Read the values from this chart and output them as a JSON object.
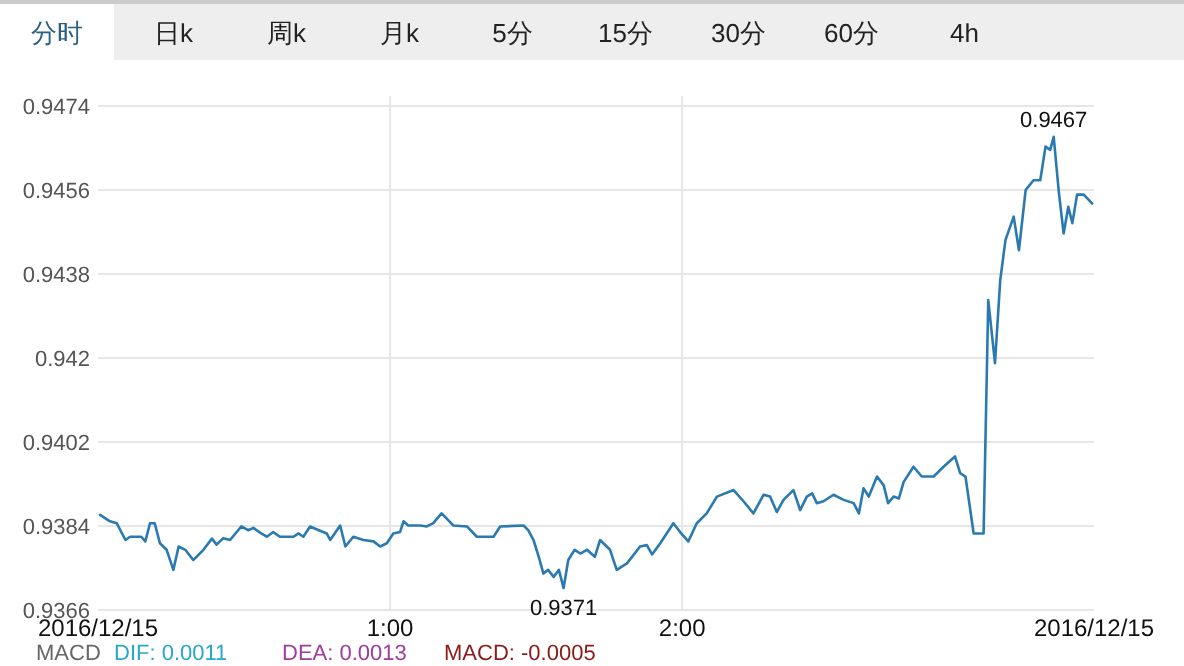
{
  "chart_data": [
    {
      "type": "other",
      "annotations": [
        "分时",
        "日k",
        "周k",
        "月k",
        "5分",
        "15分",
        "30分",
        "60分",
        "4h"
      ]
    },
    {
      "type": "line",
      "x": [
        0.007,
        0.041,
        0.064,
        0.094,
        0.11,
        0.148,
        0.162,
        0.178,
        0.194,
        0.212,
        0.235,
        0.258,
        0.276,
        0.299,
        0.326,
        0.361,
        0.39,
        0.406,
        0.429,
        0.452,
        0.491,
        0.514,
        0.532,
        0.559,
        0.578,
        0.6,
        0.623,
        0.669,
        0.687,
        0.703,
        0.726,
        0.756,
        0.783,
        0.795,
        0.829,
        0.847,
        0.874,
        0.909,
        0.943,
        0.966,
        0.989,
        1.011,
        1.034,
        1.046,
        1.062,
        1.103,
        1.126,
        1.148,
        1.176,
        1.194,
        1.217,
        1.263,
        1.297,
        1.354,
        1.377,
        1.457,
        1.473,
        1.491,
        1.509,
        1.525,
        1.541,
        1.56,
        1.578,
        1.594,
        1.61,
        1.632,
        1.651,
        1.674,
        1.701,
        1.719,
        1.753,
        1.776,
        1.811,
        1.856,
        1.879,
        1.897,
        1.925,
        1.97,
        1.993,
        2.021,
        2.05,
        2.084,
        2.119,
        2.176,
        2.21,
        2.244,
        2.279,
        2.301,
        2.324,
        2.347,
        2.381,
        2.404,
        2.427,
        2.445,
        2.461,
        2.484,
        2.518,
        2.553,
        2.587,
        2.605,
        2.621,
        2.639,
        2.667,
        2.69,
        2.705,
        2.724,
        2.742,
        2.758,
        2.792,
        2.82,
        2.861,
        2.895,
        2.934,
        2.952,
        2.97,
        2.998,
        3.032,
        3.048,
        3.071,
        3.089,
        3.107,
        3.135,
        3.153,
        3.176,
        3.203,
        3.226,
        3.244,
        3.26,
        3.272,
        3.29,
        3.306,
        3.322,
        3.336,
        3.352,
        3.375,
        3.404
      ],
      "series": [
        {
          "color": "#2a7ab0",
          "values": [
            0.93864,
            0.9385,
            0.93846,
            0.9381,
            0.93817,
            0.93817,
            0.93807,
            0.93846,
            0.93846,
            0.93803,
            0.93789,
            0.93746,
            0.93796,
            0.93789,
            0.93767,
            0.93789,
            0.93813,
            0.938,
            0.93814,
            0.9381,
            0.93839,
            0.93831,
            0.93836,
            0.93824,
            0.93817,
            0.93827,
            0.93817,
            0.93817,
            0.93824,
            0.93817,
            0.93839,
            0.93831,
            0.93824,
            0.9381,
            0.93841,
            0.93796,
            0.93817,
            0.9381,
            0.93807,
            0.93796,
            0.93803,
            0.93824,
            0.93827,
            0.9385,
            0.93841,
            0.93841,
            0.93839,
            0.93846,
            0.93867,
            0.93856,
            0.93841,
            0.93839,
            0.93817,
            0.93817,
            0.93839,
            0.93841,
            0.93831,
            0.9381,
            0.93774,
            0.93738,
            0.93746,
            0.93731,
            0.93746,
            0.93707,
            0.93767,
            0.93789,
            0.93781,
            0.93789,
            0.93774,
            0.9381,
            0.93789,
            0.93746,
            0.9376,
            0.93796,
            0.93799,
            0.93779,
            0.93803,
            0.93846,
            0.93827,
            0.93807,
            0.93846,
            0.93867,
            0.93903,
            0.93917,
            0.93893,
            0.93867,
            0.93907,
            0.93903,
            0.9387,
            0.93896,
            0.93917,
            0.93874,
            0.93903,
            0.9391,
            0.93889,
            0.93893,
            0.93907,
            0.93896,
            0.93889,
            0.93867,
            0.93921,
            0.93903,
            0.93946,
            0.93927,
            0.93889,
            0.93903,
            0.93899,
            0.93934,
            0.93967,
            0.93946,
            0.93946,
            0.93967,
            0.93989,
            0.93953,
            0.93946,
            0.93824,
            0.93824,
            0.94324,
            0.94189,
            0.94367,
            0.94453,
            0.94503,
            0.94431,
            0.9456,
            0.94581,
            0.94581,
            0.94653,
            0.94646,
            0.94674,
            0.94553,
            0.94467,
            0.94524,
            0.94489,
            0.9455,
            0.9455,
            0.94531
          ]
        }
      ],
      "xlim": [
        0,
        3.41
      ],
      "xticks": [
        {
          "value": 0,
          "label": "2016/12/15"
        },
        {
          "value": 1,
          "label": "1:00"
        },
        {
          "value": 2,
          "label": "2:00"
        },
        {
          "value": 3.41,
          "label": "2016/12/15"
        }
      ],
      "ylim": [
        0.9366,
        0.9474
      ],
      "yticks": [
        0.9366,
        0.9384,
        0.9402,
        0.942,
        0.9438,
        0.9456,
        0.9474
      ],
      "grid": true,
      "annotations": [
        "MACD",
        "DIF: 0.0011",
        "DEA: 0.0013",
        "MACD: -0.0005",
        {
          "text": "0.9371",
          "x": 1.594,
          "y": 0.9371
        },
        {
          "text": "0.9467",
          "x": 3.272,
          "y": 0.9467
        }
      ]
    }
  ]
}
